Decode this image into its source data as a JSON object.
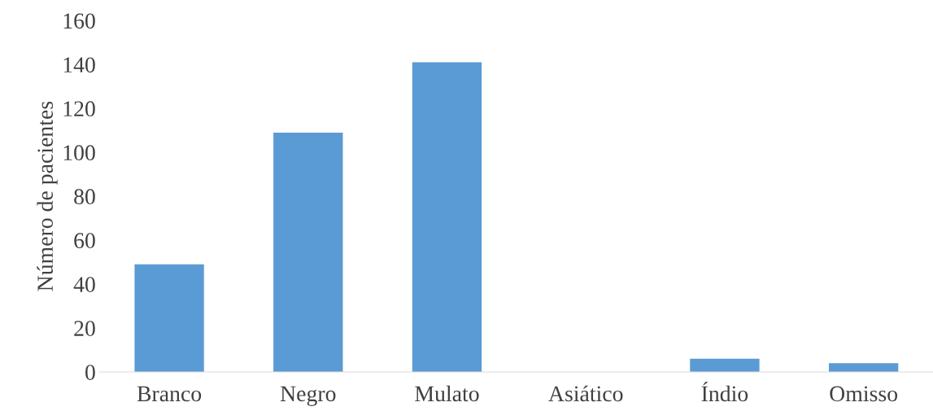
{
  "chart_data": {
    "type": "bar",
    "ylabel": "Número de pacientes",
    "categories": [
      "Branco",
      "Negro",
      "Mulato",
      "Asiático",
      "Índio",
      "Omisso"
    ],
    "values": [
      49,
      109,
      141,
      0,
      6,
      4
    ],
    "color": "#5b9bd5",
    "ylim": [
      0,
      160
    ],
    "yticks": [
      0,
      20,
      40,
      60,
      80,
      100,
      120,
      140,
      160
    ],
    "grid": false
  }
}
